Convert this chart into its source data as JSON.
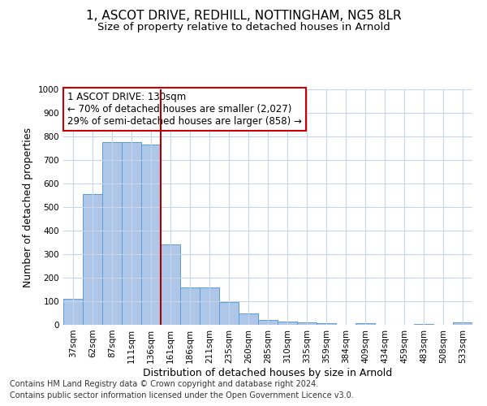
{
  "title": "1, ASCOT DRIVE, REDHILL, NOTTINGHAM, NG5 8LR",
  "subtitle": "Size of property relative to detached houses in Arnold",
  "xlabel": "Distribution of detached houses by size in Arnold",
  "ylabel": "Number of detached properties",
  "categories": [
    "37sqm",
    "62sqm",
    "87sqm",
    "111sqm",
    "136sqm",
    "161sqm",
    "186sqm",
    "211sqm",
    "235sqm",
    "260sqm",
    "285sqm",
    "310sqm",
    "335sqm",
    "359sqm",
    "384sqm",
    "409sqm",
    "434sqm",
    "459sqm",
    "483sqm",
    "508sqm",
    "533sqm"
  ],
  "values": [
    110,
    555,
    775,
    775,
    765,
    340,
    160,
    158,
    95,
    50,
    20,
    13,
    10,
    8,
    0,
    7,
    0,
    0,
    4,
    0,
    10
  ],
  "bar_color": "#aec6e8",
  "bar_edge_color": "#5b9bd5",
  "red_line_index": 4,
  "annotation_text": "1 ASCOT DRIVE: 130sqm\n← 70% of detached houses are smaller (2,027)\n29% of semi-detached houses are larger (858) →",
  "annotation_box_color": "#ffffff",
  "annotation_box_edge_color": "#cc0000",
  "ylim": [
    0,
    1000
  ],
  "yticks": [
    0,
    100,
    200,
    300,
    400,
    500,
    600,
    700,
    800,
    900,
    1000
  ],
  "footer_line1": "Contains HM Land Registry data © Crown copyright and database right 2024.",
  "footer_line2": "Contains public sector information licensed under the Open Government Licence v3.0.",
  "bg_color": "#ffffff",
  "grid_color": "#c8d4e8",
  "title_fontsize": 11,
  "subtitle_fontsize": 9.5,
  "label_fontsize": 9,
  "tick_fontsize": 7.5,
  "annotation_fontsize": 8.5,
  "footer_fontsize": 7
}
